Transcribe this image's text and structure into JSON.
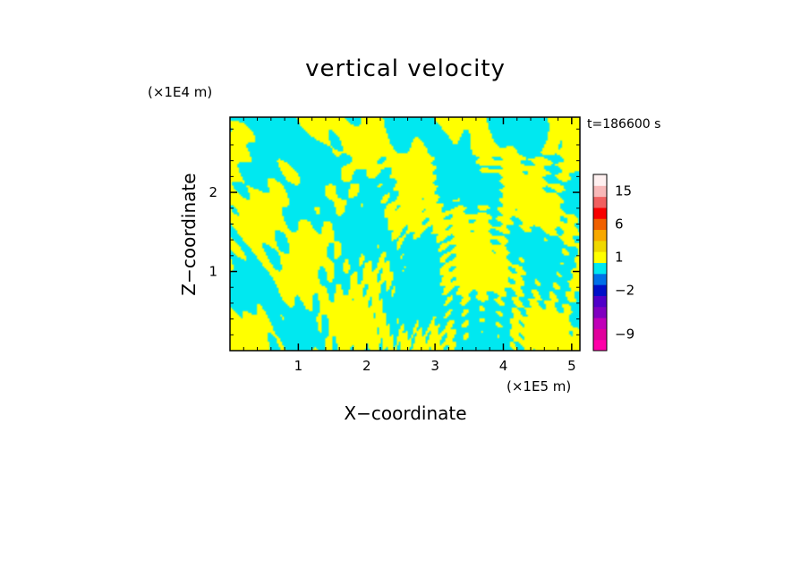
{
  "chart_data": {
    "type": "heatmap",
    "title": "vertical velocity",
    "xlabel": "X−coordinate",
    "ylabel": "Z−coordinate",
    "x_unit": "(×1E5 m)",
    "y_unit": "(×1E4 m)",
    "time_label": "t=186600 s",
    "xlim": [
      0.0,
      5.12
    ],
    "ylim": [
      0.0,
      2.95
    ],
    "x_ticks": [
      1,
      2,
      3,
      4,
      5
    ],
    "x_tick_labels": [
      "1",
      "2",
      "3",
      "4",
      "5"
    ],
    "y_ticks": [
      1,
      2
    ],
    "y_tick_labels": [
      "1",
      "2"
    ],
    "field_colors": {
      "positive": "#ffff00",
      "negative": "#00e8f0"
    },
    "colorbar": {
      "colors": [
        "#ff00a8",
        "#e0009c",
        "#c000b8",
        "#8000c0",
        "#5000c8",
        "#0010c8",
        "#0070e8",
        "#00e8f0",
        "#ffff00",
        "#f0d800",
        "#f8a800",
        "#f06000",
        "#f80000",
        "#f06060",
        "#f8b8b8",
        "#fff0f0"
      ],
      "tick_labels": [
        "−9",
        "−2",
        "1",
        "6",
        "15"
      ]
    }
  }
}
